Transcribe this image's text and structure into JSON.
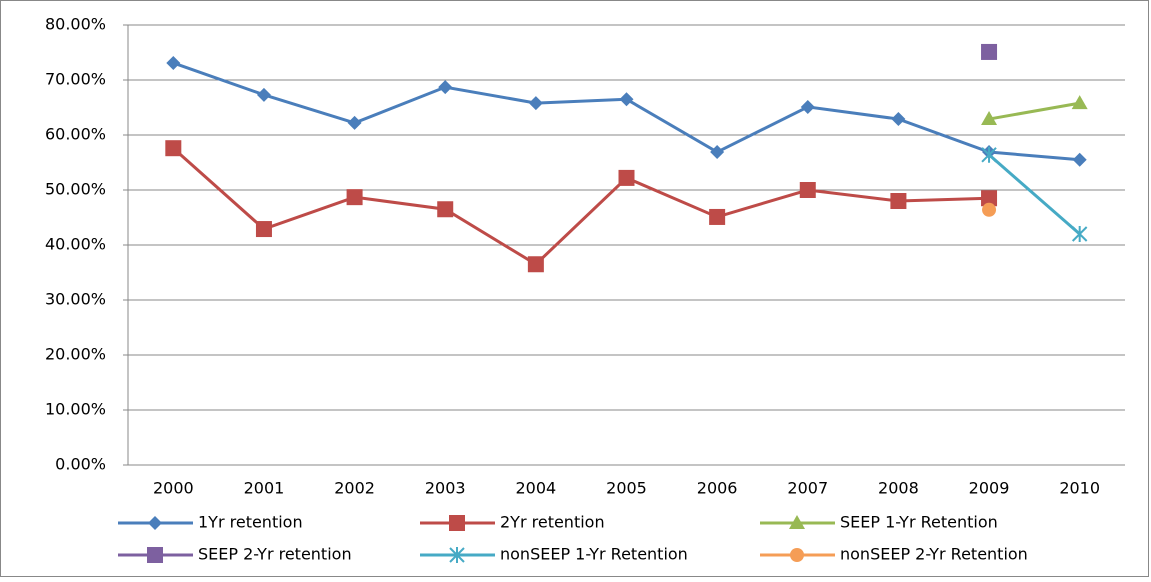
{
  "chart_data": {
    "type": "line",
    "categories": [
      "2000",
      "2001",
      "2002",
      "2003",
      "2004",
      "2005",
      "2006",
      "2007",
      "2008",
      "2009",
      "2010"
    ],
    "series": [
      {
        "name": "1Yr retention",
        "color": "#4a7ebb",
        "marker": "diamond",
        "values": [
          73.1,
          67.3,
          62.2,
          68.7,
          65.8,
          66.5,
          56.9,
          65.1,
          62.9,
          56.9,
          55.5
        ]
      },
      {
        "name": "2Yr retention",
        "color": "#be4b48",
        "marker": "square",
        "values": [
          57.6,
          42.9,
          48.7,
          46.5,
          36.5,
          52.2,
          45.1,
          50,
          48,
          48.5,
          null
        ]
      },
      {
        "name": "SEEP 1-Yr Retention",
        "color": "#98b954",
        "marker": "triangle",
        "values": [
          null,
          null,
          null,
          null,
          null,
          null,
          null,
          null,
          null,
          62.9,
          65.8
        ]
      },
      {
        "name": "SEEP 2-Yr retention",
        "color": "#7d60a0",
        "marker": "square",
        "values": [
          null,
          null,
          null,
          null,
          null,
          null,
          null,
          null,
          null,
          75.1,
          null
        ]
      },
      {
        "name": "nonSEEP 1-Yr Retention",
        "color": "#46aac5",
        "marker": "star",
        "values": [
          null,
          null,
          null,
          null,
          null,
          null,
          null,
          null,
          null,
          56.4,
          42
        ]
      },
      {
        "name": "nonSEEP 2-Yr Retention",
        "color": "#f59d56",
        "marker": "circle",
        "values": [
          null,
          null,
          null,
          null,
          null,
          null,
          null,
          null,
          null,
          46.4,
          null
        ]
      }
    ],
    "ylim": [
      0,
      80
    ],
    "yticks": [
      {
        "value": 0,
        "label": "0.00%"
      },
      {
        "value": 10,
        "label": "10.00%"
      },
      {
        "value": 20,
        "label": "20.00%"
      },
      {
        "value": 30,
        "label": "30.00%"
      },
      {
        "value": 40,
        "label": "40.00%"
      },
      {
        "value": 50,
        "label": "50.00%"
      },
      {
        "value": 60,
        "label": "60.00%"
      },
      {
        "value": 70,
        "label": "70.00%"
      },
      {
        "value": 80,
        "label": "80.00%"
      }
    ],
    "grid": true,
    "legend": "bottom"
  }
}
